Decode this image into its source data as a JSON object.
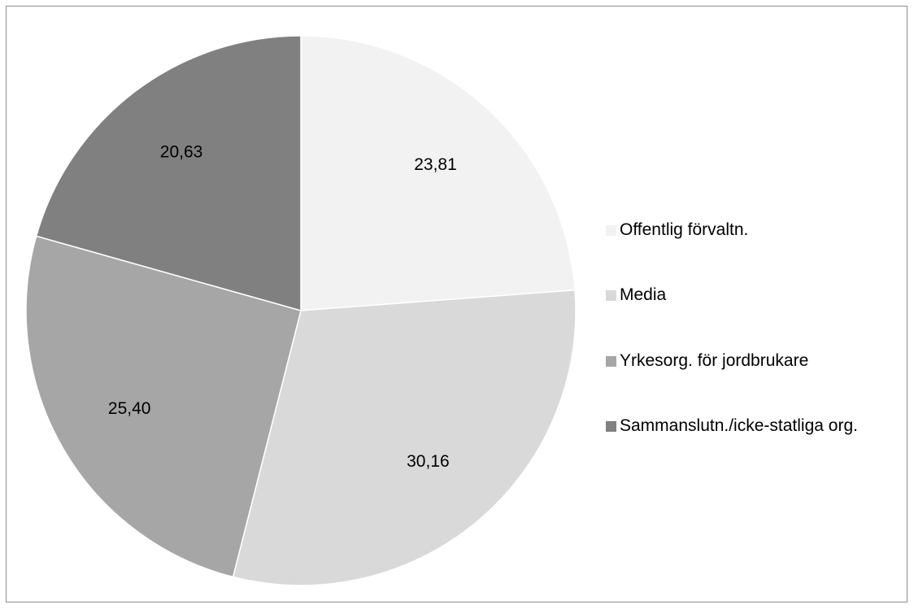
{
  "chart_data": {
    "type": "pie",
    "title": "",
    "legend_position": "right",
    "slices": [
      {
        "name": "Offentlig förvaltn.",
        "value": 23.81,
        "label": "23,81",
        "color": "#f2f2f2"
      },
      {
        "name": "Media",
        "value": 30.16,
        "label": "30,16",
        "color": "#d9d9d9"
      },
      {
        "name": "Yrkesorg. för jordbrukare",
        "value": 25.4,
        "label": "25,40",
        "color": "#a6a6a6"
      },
      {
        "name": "Sammanslutn./icke-statliga org.",
        "value": 20.63,
        "label": "20,63",
        "color": "#808080"
      }
    ]
  }
}
